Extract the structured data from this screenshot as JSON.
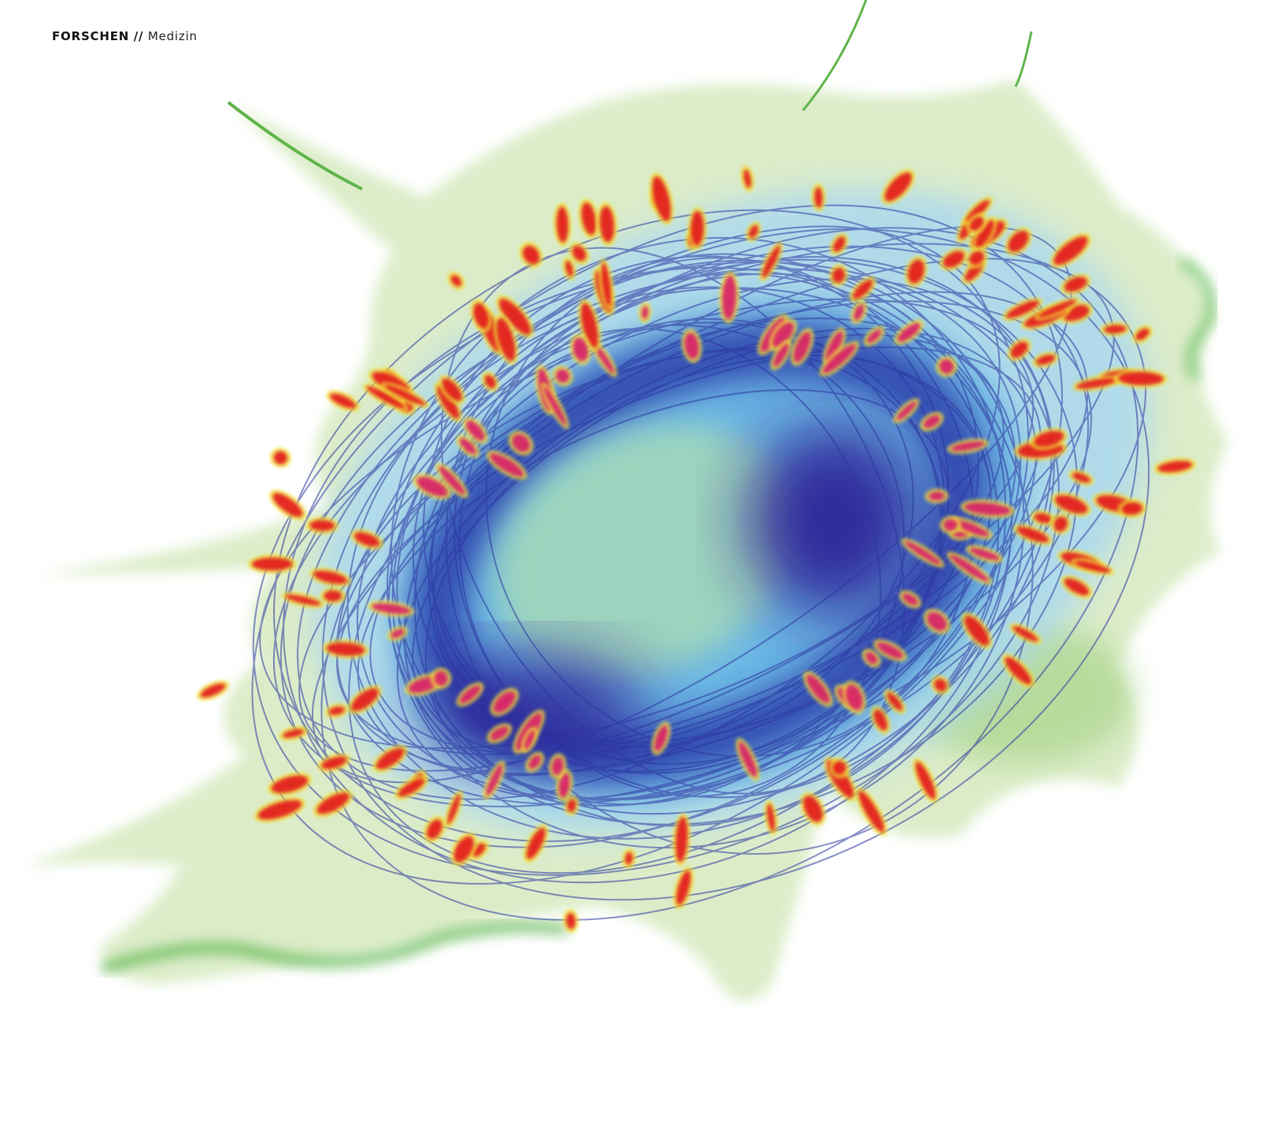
{
  "header": {
    "section": "FORSCHEN",
    "separator": "//",
    "subsection": "Medizin"
  }
}
